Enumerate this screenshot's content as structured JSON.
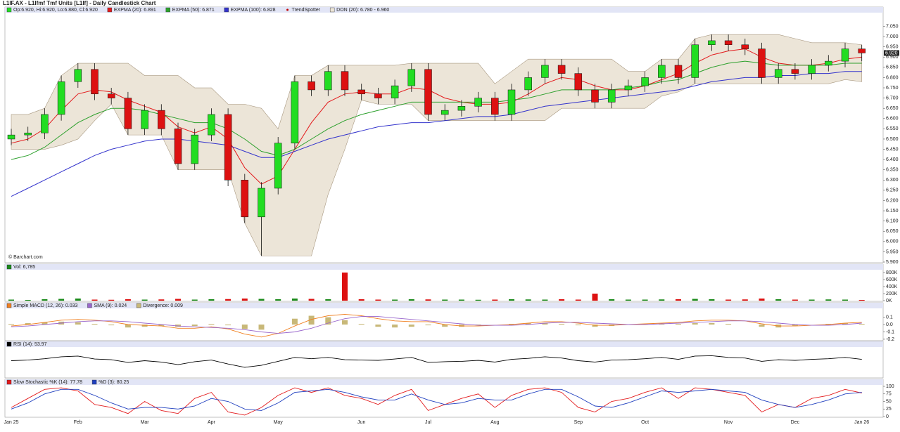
{
  "title": "L1IF.AX - L1lfmf Tmf Units [L1lf] - Daily Candlestick Chart",
  "chart_data": [
    {
      "type": "candlestick",
      "ohlc_label": "Op:6.920, Hi:6.920, Lo:6.880, Cl:6.920",
      "credit": "© Barchart.com",
      "categories": [
        "Jan 25",
        null,
        null,
        null,
        "Feb",
        null,
        null,
        null,
        "Mar",
        null,
        null,
        null,
        "Apr",
        null,
        null,
        null,
        "May",
        null,
        null,
        null,
        null,
        "Jun",
        null,
        null,
        null,
        "Jul",
        null,
        null,
        null,
        "Aug",
        null,
        null,
        null,
        null,
        "Sep",
        null,
        null,
        null,
        "Oct",
        null,
        null,
        null,
        null,
        "Nov",
        null,
        null,
        null,
        "Dec",
        null,
        null,
        null,
        "Jan 26"
      ],
      "open": [
        6.5,
        6.52,
        6.53,
        6.62,
        6.78,
        6.84,
        6.72,
        6.7,
        6.55,
        6.64,
        6.55,
        6.38,
        6.52,
        6.62,
        6.3,
        6.12,
        6.26,
        6.48,
        6.78,
        6.74,
        6.83,
        6.74,
        6.72,
        6.7,
        6.76,
        6.84,
        6.62,
        6.64,
        6.66,
        6.7,
        6.62,
        6.74,
        6.8,
        6.86,
        6.82,
        6.74,
        6.68,
        6.74,
        6.76,
        6.8,
        6.86,
        6.8,
        6.96,
        6.98,
        6.96,
        6.94,
        6.8,
        6.84,
        6.82,
        6.86,
        6.88,
        6.94
      ],
      "high": [
        6.55,
        6.56,
        6.65,
        6.81,
        6.87,
        6.87,
        6.75,
        6.73,
        6.67,
        6.67,
        6.58,
        6.55,
        6.65,
        6.65,
        6.33,
        6.29,
        6.51,
        6.81,
        6.81,
        6.86,
        6.86,
        6.77,
        6.75,
        6.79,
        6.87,
        6.87,
        6.67,
        6.69,
        6.73,
        6.73,
        6.77,
        6.83,
        6.89,
        6.89,
        6.85,
        6.77,
        6.77,
        6.79,
        6.83,
        6.89,
        6.89,
        6.99,
        7.01,
        7.01,
        6.99,
        6.97,
        6.87,
        6.87,
        6.89,
        6.91,
        6.97,
        6.96
      ],
      "low": [
        6.47,
        6.49,
        6.5,
        6.59,
        6.75,
        6.69,
        6.67,
        6.52,
        6.52,
        6.52,
        6.35,
        6.35,
        6.49,
        6.27,
        6.09,
        5.93,
        6.23,
        6.45,
        6.71,
        6.71,
        6.71,
        6.69,
        6.67,
        6.67,
        6.73,
        6.59,
        6.59,
        6.61,
        6.63,
        6.59,
        6.59,
        6.71,
        6.77,
        6.79,
        6.71,
        6.65,
        6.65,
        6.71,
        6.73,
        6.77,
        6.77,
        6.77,
        6.93,
        6.93,
        6.91,
        6.77,
        6.77,
        6.79,
        6.79,
        6.83,
        6.85,
        6.88
      ],
      "close": [
        6.52,
        6.53,
        6.62,
        6.78,
        6.84,
        6.72,
        6.7,
        6.55,
        6.64,
        6.55,
        6.38,
        6.52,
        6.62,
        6.3,
        6.12,
        6.26,
        6.48,
        6.78,
        6.74,
        6.83,
        6.74,
        6.72,
        6.7,
        6.76,
        6.84,
        6.62,
        6.64,
        6.66,
        6.7,
        6.62,
        6.74,
        6.8,
        6.86,
        6.82,
        6.74,
        6.68,
        6.74,
        6.76,
        6.8,
        6.86,
        6.8,
        6.96,
        6.98,
        6.96,
        6.94,
        6.8,
        6.84,
        6.82,
        6.86,
        6.88,
        6.94,
        6.92
      ],
      "up_color": "#22dd22",
      "down_color": "#dd1111",
      "series": [
        {
          "name": "EXPMA (20): 6.891",
          "color": "#e31a1c",
          "values": [
            6.48,
            6.5,
            6.55,
            6.64,
            6.72,
            6.74,
            6.73,
            6.69,
            6.66,
            6.63,
            6.56,
            6.53,
            6.56,
            6.5,
            6.36,
            6.28,
            6.32,
            6.45,
            6.58,
            6.68,
            6.72,
            6.73,
            6.72,
            6.72,
            6.75,
            6.74,
            6.7,
            6.68,
            6.67,
            6.67,
            6.68,
            6.72,
            6.77,
            6.8,
            6.79,
            6.76,
            6.74,
            6.74,
            6.76,
            6.79,
            6.82,
            6.87,
            6.91,
            6.93,
            6.94,
            6.9,
            6.87,
            6.86,
            6.86,
            6.87,
            6.89,
            6.9
          ]
        },
        {
          "name": "EXPMA (50): 6.871",
          "color": "#2ca02c",
          "values": [
            6.4,
            6.42,
            6.46,
            6.52,
            6.58,
            6.62,
            6.65,
            6.65,
            6.64,
            6.62,
            6.6,
            6.58,
            6.58,
            6.55,
            6.5,
            6.44,
            6.42,
            6.45,
            6.5,
            6.55,
            6.59,
            6.62,
            6.64,
            6.66,
            6.68,
            6.68,
            6.68,
            6.68,
            6.68,
            6.68,
            6.69,
            6.7,
            6.72,
            6.74,
            6.74,
            6.74,
            6.74,
            6.75,
            6.76,
            6.78,
            6.79,
            6.82,
            6.85,
            6.87,
            6.88,
            6.87,
            6.86,
            6.86,
            6.86,
            6.86,
            6.87,
            6.87
          ]
        },
        {
          "name": "EXPMA (100): 6.828",
          "color": "#3333cc",
          "values": [
            6.22,
            6.26,
            6.3,
            6.34,
            6.38,
            6.42,
            6.45,
            6.47,
            6.49,
            6.5,
            6.5,
            6.49,
            6.48,
            6.47,
            6.44,
            6.41,
            6.41,
            6.44,
            6.47,
            6.5,
            6.52,
            6.54,
            6.56,
            6.57,
            6.58,
            6.58,
            6.59,
            6.6,
            6.61,
            6.61,
            6.62,
            6.64,
            6.66,
            6.67,
            6.68,
            6.69,
            6.7,
            6.71,
            6.72,
            6.73,
            6.74,
            6.76,
            6.78,
            6.79,
            6.8,
            6.8,
            6.81,
            6.81,
            6.82,
            6.82,
            6.83,
            6.83
          ]
        }
      ],
      "trendspotter": {
        "name": "TrendSpotter",
        "color": "#c00000"
      },
      "band": {
        "name": "DON (20): 6.780 - 6.960",
        "color": "#ece5d8",
        "edge": "#a89880",
        "upper": [
          6.62,
          6.62,
          6.65,
          6.81,
          6.87,
          6.87,
          6.87,
          6.87,
          6.81,
          6.81,
          6.81,
          6.75,
          6.75,
          6.67,
          6.67,
          6.65,
          6.55,
          6.81,
          6.81,
          6.86,
          6.86,
          6.86,
          6.86,
          6.86,
          6.87,
          6.87,
          6.87,
          6.87,
          6.87,
          6.77,
          6.83,
          6.89,
          6.89,
          6.89,
          6.89,
          6.89,
          6.89,
          6.83,
          6.83,
          6.89,
          6.89,
          6.99,
          7.01,
          7.01,
          7.01,
          7.01,
          7.01,
          6.99,
          6.97,
          6.97,
          6.97,
          6.96
        ],
        "lower": [
          6.45,
          6.45,
          6.45,
          6.47,
          6.5,
          6.59,
          6.67,
          6.52,
          6.52,
          6.52,
          6.35,
          6.35,
          6.35,
          6.35,
          6.09,
          5.93,
          5.93,
          5.93,
          5.93,
          6.23,
          6.45,
          6.69,
          6.67,
          6.67,
          6.67,
          6.59,
          6.59,
          6.59,
          6.59,
          6.59,
          6.59,
          6.59,
          6.59,
          6.65,
          6.65,
          6.65,
          6.65,
          6.65,
          6.65,
          6.71,
          6.73,
          6.77,
          6.77,
          6.77,
          6.77,
          6.77,
          6.77,
          6.77,
          6.77,
          6.77,
          6.79,
          6.78
        ]
      },
      "last_price": {
        "value": 6.92,
        "label": "6.920"
      },
      "ylim": [
        5.9,
        7.11
      ],
      "yticks": [
        {
          "value": 7.05,
          "label": "7.050"
        },
        {
          "value": 7.0,
          "label": "7.000"
        },
        {
          "value": 6.95,
          "label": "6.950"
        },
        {
          "value": 6.9,
          "label": "6.900"
        },
        {
          "value": 6.85,
          "label": "6.850"
        },
        {
          "value": 6.8,
          "label": "6.800"
        },
        {
          "value": 6.75,
          "label": "6.750"
        },
        {
          "value": 6.7,
          "label": "6.700"
        },
        {
          "value": 6.65,
          "label": "6.650"
        },
        {
          "value": 6.6,
          "label": "6.600"
        },
        {
          "value": 6.55,
          "label": "6.550"
        },
        {
          "value": 6.5,
          "label": "6.500"
        },
        {
          "value": 6.45,
          "label": "6.450"
        },
        {
          "value": 6.4,
          "label": "6.400"
        },
        {
          "value": 6.35,
          "label": "6.350"
        },
        {
          "value": 6.3,
          "label": "6.300"
        },
        {
          "value": 6.25,
          "label": "6.250"
        },
        {
          "value": 6.2,
          "label": "6.200"
        },
        {
          "value": 6.15,
          "label": "6.150"
        },
        {
          "value": 6.1,
          "label": "6.100"
        },
        {
          "value": 6.05,
          "label": "6.050"
        },
        {
          "value": 6.0,
          "label": "6.000"
        },
        {
          "value": 5.95,
          "label": "5.950"
        },
        {
          "value": 5.9,
          "label": "5.900"
        }
      ]
    },
    {
      "type": "bar",
      "name": "Vol: 6,785",
      "values": [
        30000,
        20000,
        40000,
        50000,
        60000,
        30000,
        25000,
        40000,
        30000,
        35000,
        50000,
        30000,
        40000,
        45000,
        60000,
        50000,
        40000,
        60000,
        50000,
        40000,
        800000,
        40000,
        30000,
        30000,
        40000,
        35000,
        30000,
        30000,
        25000,
        30000,
        40000,
        35000,
        30000,
        40000,
        30000,
        200000,
        40000,
        30000,
        30000,
        35000,
        40000,
        50000,
        40000,
        30000,
        35000,
        60000,
        40000,
        30000,
        30000,
        35000,
        30000,
        20000
      ],
      "ylim": [
        0,
        960000
      ],
      "yticks": [
        {
          "value": 800000,
          "label": "800K"
        },
        {
          "value": 600000,
          "label": "600K"
        },
        {
          "value": 400000,
          "label": "400K"
        },
        {
          "value": 200000,
          "label": "200K"
        },
        {
          "value": 0,
          "label": "0K"
        }
      ]
    },
    {
      "type": "macd",
      "series": [
        {
          "name": "Simple MACD (12, 26): 0.033",
          "color": "#f08020",
          "values": [
            -0.02,
            0.0,
            0.03,
            0.06,
            0.07,
            0.06,
            0.04,
            0.0,
            -0.01,
            -0.02,
            -0.05,
            -0.05,
            -0.03,
            -0.06,
            -0.13,
            -0.17,
            -0.12,
            -0.02,
            0.07,
            0.12,
            0.14,
            0.12,
            0.08,
            0.05,
            0.04,
            0.04,
            0.0,
            -0.02,
            -0.02,
            -0.01,
            0.0,
            0.02,
            0.04,
            0.04,
            0.02,
            -0.01,
            -0.01,
            0.0,
            0.01,
            0.02,
            0.03,
            0.05,
            0.06,
            0.06,
            0.05,
            0.01,
            -0.02,
            -0.02,
            -0.01,
            0.0,
            0.02,
            0.03
          ]
        },
        {
          "name": "SMA (9): 0.024",
          "color": "#9966cc",
          "values": [
            -0.03,
            -0.02,
            0.0,
            0.02,
            0.04,
            0.05,
            0.05,
            0.04,
            0.02,
            0.0,
            -0.02,
            -0.03,
            -0.04,
            -0.05,
            -0.07,
            -0.1,
            -0.12,
            -0.1,
            -0.05,
            0.02,
            0.08,
            0.11,
            0.11,
            0.09,
            0.07,
            0.05,
            0.03,
            0.01,
            -0.01,
            -0.01,
            -0.01,
            0.0,
            0.02,
            0.03,
            0.03,
            0.02,
            0.01,
            0.0,
            0.0,
            0.01,
            0.02,
            0.03,
            0.04,
            0.05,
            0.05,
            0.04,
            0.02,
            0.0,
            -0.01,
            -0.01,
            0.0,
            0.02
          ]
        }
      ],
      "histogram": {
        "name": "Divergence: 0.009",
        "color": "#c8b878",
        "values": [
          0.01,
          0.02,
          0.03,
          0.04,
          0.03,
          0.01,
          -0.01,
          -0.04,
          -0.03,
          -0.02,
          -0.03,
          -0.02,
          0.01,
          -0.01,
          -0.06,
          -0.07,
          0.0,
          0.08,
          0.12,
          0.1,
          0.06,
          0.01,
          -0.03,
          -0.04,
          -0.03,
          -0.01,
          -0.03,
          -0.03,
          -0.01,
          0.0,
          0.01,
          0.02,
          0.02,
          0.01,
          -0.01,
          -0.03,
          -0.02,
          0.0,
          0.01,
          0.01,
          0.01,
          0.02,
          0.02,
          0.01,
          0.0,
          -0.03,
          -0.04,
          -0.02,
          0.0,
          0.01,
          0.02,
          0.01
        ]
      },
      "ylim": [
        -0.22,
        0.24
      ],
      "yticks": [
        0.1,
        {
          "value": 0,
          "label": "0.0"
        },
        -0.1,
        -0.2
      ]
    },
    {
      "type": "line",
      "series": [
        {
          "name": "RSI (14): 53.97",
          "color": "#000000",
          "values": [
            50,
            52,
            56,
            62,
            64,
            55,
            53,
            45,
            50,
            46,
            38,
            47,
            52,
            40,
            30,
            36,
            48,
            60,
            56,
            60,
            53,
            52,
            51,
            55,
            60,
            45,
            47,
            48,
            51,
            46,
            54,
            57,
            62,
            58,
            50,
            46,
            52,
            53,
            56,
            60,
            54,
            64,
            65,
            60,
            58,
            48,
            53,
            51,
            54,
            56,
            60,
            54
          ]
        }
      ],
      "ylim": [
        0,
        100
      ]
    },
    {
      "type": "line",
      "series": [
        {
          "name": "Slow Stochastic %K (14): 77.78",
          "color": "#e31a1c",
          "values": [
            30,
            60,
            90,
            95,
            85,
            40,
            30,
            10,
            50,
            20,
            10,
            60,
            80,
            15,
            5,
            30,
            70,
            95,
            80,
            95,
            70,
            60,
            40,
            70,
            90,
            20,
            40,
            60,
            75,
            30,
            70,
            90,
            95,
            80,
            30,
            15,
            50,
            60,
            80,
            95,
            60,
            95,
            90,
            80,
            70,
            15,
            40,
            30,
            60,
            70,
            90,
            78
          ]
        },
        {
          "name": "%D (3): 80.25",
          "color": "#1f3fbf",
          "values": [
            25,
            45,
            75,
            90,
            90,
            70,
            45,
            25,
            30,
            30,
            25,
            35,
            60,
            50,
            25,
            20,
            45,
            80,
            85,
            90,
            80,
            65,
            55,
            55,
            75,
            55,
            40,
            45,
            60,
            55,
            55,
            75,
            90,
            90,
            65,
            35,
            30,
            45,
            65,
            85,
            80,
            85,
            90,
            85,
            80,
            55,
            40,
            30,
            40,
            55,
            75,
            80
          ]
        }
      ],
      "ylim": [
        0,
        100
      ],
      "yticks": [
        100,
        75,
        50,
        25,
        0
      ]
    }
  ]
}
